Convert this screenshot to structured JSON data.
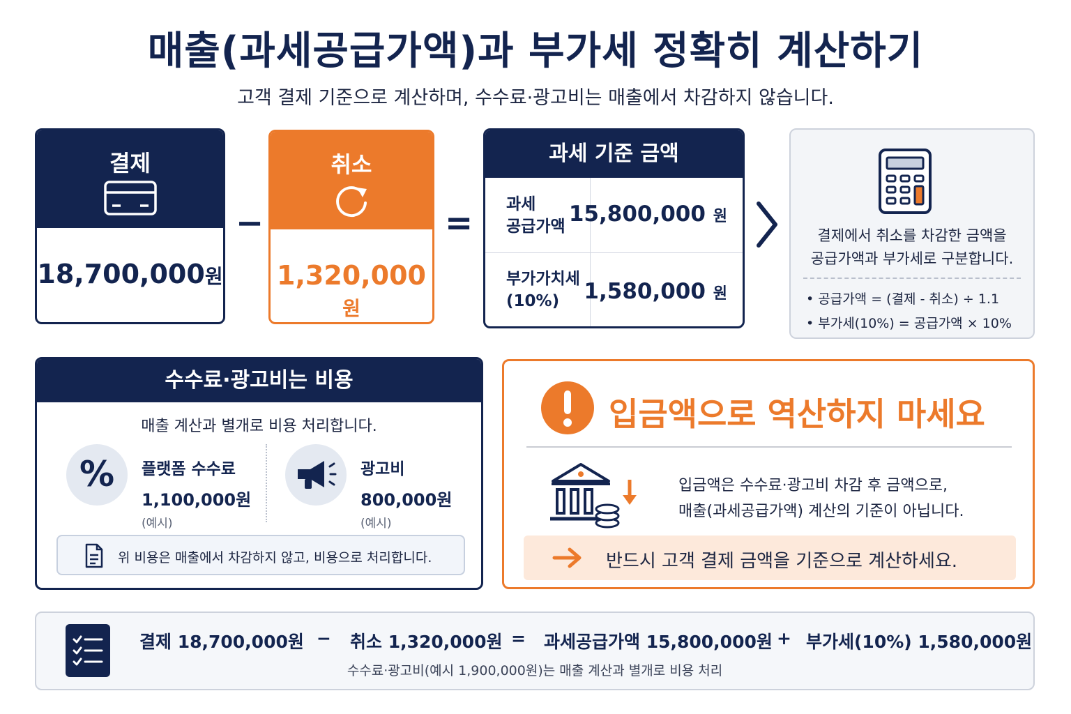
{
  "header": {
    "title": "매출(과세공급가액)과 부가세 정확히 계산하기",
    "subtitle": "고객 결제 기준으로 계산하며, 수수료·광고비는 매출에서 차감하지 않습니다."
  },
  "payment": {
    "label": "결제",
    "amount": "18,700,000",
    "unit": "원",
    "icon": "credit-card-icon"
  },
  "cancel": {
    "label": "취소",
    "amount": "1,320,000",
    "unit": "원",
    "icon": "refresh-icon"
  },
  "operators": {
    "minus": "−",
    "equals": "="
  },
  "tax_base": {
    "title": "과세 기준 금액",
    "rows": [
      {
        "label_line1": "과세",
        "label_line2": "공급가액",
        "amount": "15,800,000",
        "unit": "원"
      },
      {
        "label_line1": "부가가치세",
        "label_line2": "(10%)",
        "amount": "1,580,000",
        "unit": "원"
      }
    ]
  },
  "info": {
    "icon": "calculator-icon",
    "desc_line1": "결제에서 취소를 차감한 금액을",
    "desc_line2": "공급가액과 부가세로 구분합니다.",
    "formula1": "• 공급가액 = (결제 - 취소) ÷ 1.1",
    "formula2": "• 부가세(10%) = 공급가액 × 10%"
  },
  "costs": {
    "title": "수수료·광고비는 비용",
    "subtitle": "매출 계산과 별개로 비용 처리합니다.",
    "items": [
      {
        "name": "플랫폼 수수료",
        "amount": "1,100,000원",
        "note": "(예시)",
        "icon": "percent-icon"
      },
      {
        "name": "광고비",
        "amount": "800,000원",
        "note": "(예시)",
        "icon": "megaphone-icon"
      }
    ],
    "footnote": "위 비용은 매출에서 차감하지 않고, 비용으로 처리합니다."
  },
  "warning": {
    "title": "입금액으로 역산하지 마세요",
    "desc_line1": "입금액은 수수료·광고비 차감 후 금액으로,",
    "desc_line2": "매출(과세공급가액) 계산의 기준이 아닙니다.",
    "callout": "반드시 고객 결제 금액을 기준으로 계산하세요.",
    "colors": {
      "accent": "#ec7a2b",
      "band": "#fde9db"
    }
  },
  "summary": {
    "payment": "결제 18,700,000원",
    "minus": "−",
    "cancel": "취소 1,320,000원",
    "equals": "=",
    "supply": "과세공급가액 15,800,000원",
    "plus": "+",
    "vat": "부가세(10%) 1,580,000원",
    "note": "수수료·광고비(예시 1,900,000원)는 매출 계산과 별개로 비용 처리"
  },
  "colors": {
    "navy": "#13244f",
    "orange": "#ec7a2b"
  }
}
